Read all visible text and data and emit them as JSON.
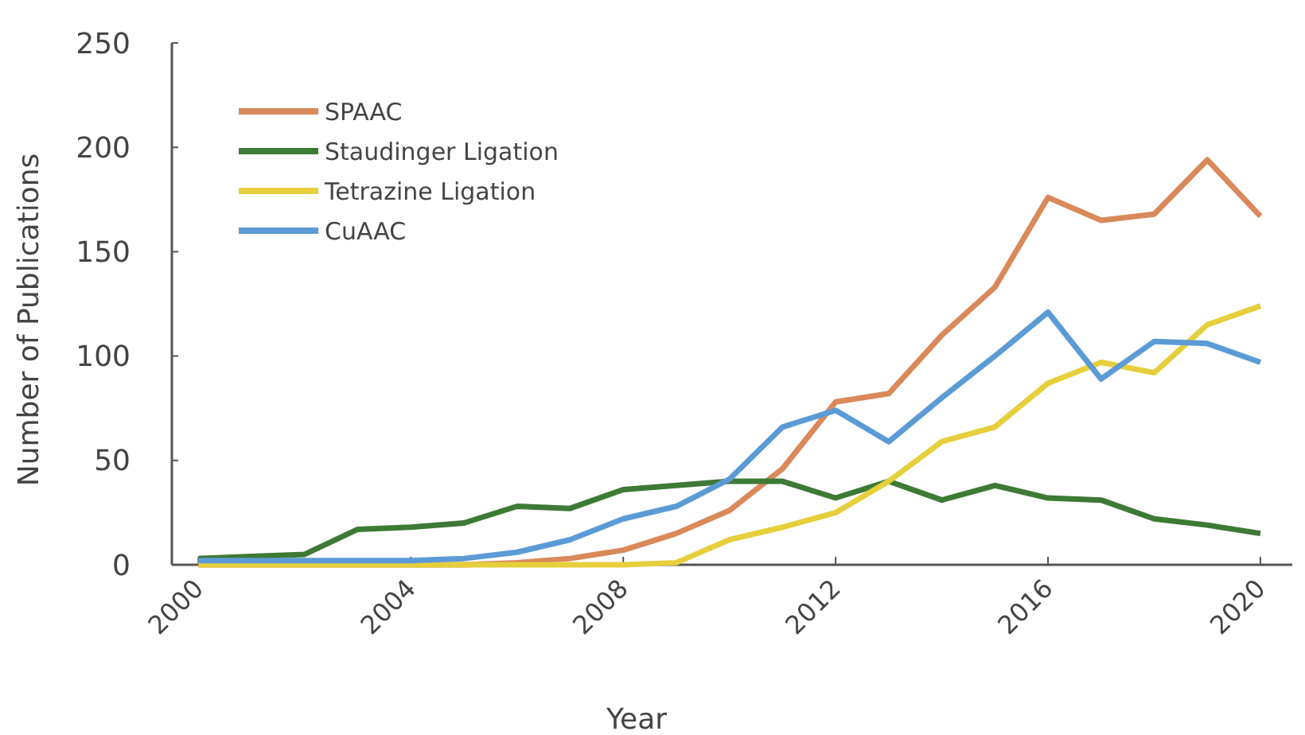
{
  "chart_data": {
    "type": "line",
    "xlabel": "Year",
    "ylabel": "Number of Publications",
    "x": [
      2000,
      2001,
      2002,
      2003,
      2004,
      2005,
      2006,
      2007,
      2008,
      2009,
      2010,
      2011,
      2012,
      2013,
      2014,
      2015,
      2016,
      2017,
      2018,
      2019,
      2020
    ],
    "xlim": [
      1999.5,
      2020.6
    ],
    "xticks": [
      2000,
      2004,
      2008,
      2012,
      2016,
      2020
    ],
    "ylim": [
      0,
      250
    ],
    "yticks": [
      0,
      50,
      100,
      150,
      200,
      250
    ],
    "grid": false,
    "legend": "top left",
    "marker": "none",
    "line_style": "solid",
    "series": [
      {
        "name": "SPAAC",
        "color": "#d9895a",
        "values": [
          0,
          0,
          0,
          0,
          0,
          0,
          1,
          3,
          7,
          15,
          26,
          46,
          78,
          82,
          110,
          133,
          176,
          165,
          168,
          194,
          167
        ]
      },
      {
        "name": "Staudinger Ligation",
        "color": "#3d7a35",
        "values": [
          3,
          4,
          5,
          17,
          18,
          20,
          28,
          27,
          36,
          38,
          40,
          40,
          32,
          40,
          31,
          38,
          32,
          31,
          22,
          19,
          15
        ]
      },
      {
        "name": "Tetrazine Ligation",
        "color": "#e6cf3c",
        "values": [
          0,
          0,
          0,
          0,
          0,
          0,
          0,
          0,
          0,
          1,
          12,
          18,
          25,
          40,
          59,
          66,
          87,
          97,
          92,
          115,
          124
        ]
      },
      {
        "name": "CuAAC",
        "color": "#5b9bd5",
        "values": [
          2,
          2,
          2,
          2,
          2,
          3,
          6,
          12,
          22,
          28,
          41,
          66,
          74,
          59,
          80,
          100,
          121,
          89,
          107,
          106,
          97
        ]
      }
    ]
  }
}
